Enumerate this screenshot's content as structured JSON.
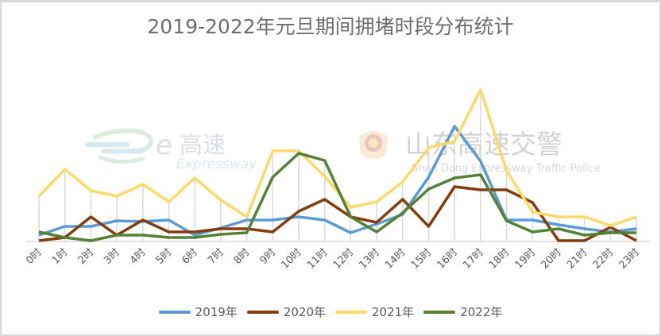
{
  "chart_data": {
    "type": "line",
    "title": "2019-2022年元旦期间拥堵时段分布统计",
    "xlabel": "",
    "ylabel": "",
    "y_axis_visible": false,
    "grid": "vertical drop lines at each category",
    "legend_position": "bottom",
    "value_note": "relative values (no y-axis shown), estimated from pixel heights above baseline",
    "categories": [
      "0时",
      "1时",
      "2时",
      "3时",
      "4时",
      "5时",
      "6时",
      "7时",
      "8时",
      "9时",
      "10时",
      "11时",
      "12时",
      "13时",
      "14时",
      "15时",
      "16时",
      "17时",
      "18时",
      "19时",
      "20时",
      "21时",
      "22时",
      "23时"
    ],
    "ylim": [
      0,
      200
    ],
    "series": [
      {
        "name": "2019年",
        "color": "#5b9bd5",
        "values": [
          8,
          19,
          19,
          26,
          25,
          27,
          8,
          17,
          27,
          27,
          31,
          27,
          11,
          22,
          34,
          81,
          145,
          101,
          27,
          27,
          21,
          16,
          12,
          16
        ]
      },
      {
        "name": "2020年",
        "color": "#843c0c",
        "values": [
          1,
          5,
          31,
          8,
          27,
          12,
          12,
          16,
          16,
          12,
          38,
          53,
          31,
          24,
          53,
          19,
          69,
          65,
          65,
          49,
          1,
          1,
          18,
          1
        ]
      },
      {
        "name": "2021年",
        "color": "#ffd966",
        "values": [
          57,
          91,
          64,
          57,
          72,
          50,
          80,
          52,
          31,
          114,
          114,
          82,
          43,
          50,
          75,
          118,
          126,
          191,
          89,
          37,
          31,
          31,
          20,
          31
        ]
      },
      {
        "name": "2022年",
        "color": "#548235",
        "values": [
          12,
          5,
          1,
          8,
          8,
          5,
          5,
          9,
          11,
          81,
          111,
          102,
          31,
          12,
          36,
          66,
          80,
          84,
          26,
          12,
          16,
          8,
          11,
          11
        ]
      }
    ]
  },
  "watermarks": {
    "left_logo_letter": "e",
    "left_logo_cn": "高速",
    "left_logo_en": "Expressway",
    "right_logo_cn": "山东高速交警",
    "right_logo_en": "Shan Dong Expressway Traffic Police"
  },
  "colors": {
    "axis": "#d9d9d9",
    "gridline": "#d9d9d9",
    "tick_label": "#595959",
    "title": "#6e6e6e"
  }
}
